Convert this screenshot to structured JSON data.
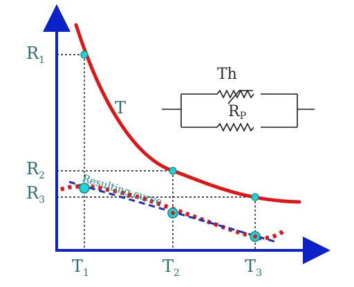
{
  "labels": {
    "y1": "R",
    "y1_sub": "1",
    "y2": "R",
    "y2_sub": "2",
    "y3": "R",
    "y3_sub": "3",
    "x1": "T",
    "x1_sub": "1",
    "x2": "T",
    "x2_sub": "2",
    "x3": "T",
    "x3_sub": "3",
    "t_curve": "T",
    "resulting_curve": "Resulting curve",
    "thermistor": "Th",
    "parallel_resistor": "R",
    "parallel_resistor_sub": "P"
  },
  "colors": {
    "axis": "#0b22c8",
    "thermistor_curve": "#e01515",
    "resulting_curve_dotted": "#e01515",
    "linear_fit": "#1730c7",
    "marker_fill": "#22d3d3",
    "marker_stroke": "#128686",
    "label_text": "#2a6d6d",
    "circuit": "#1a1a1a"
  }
}
